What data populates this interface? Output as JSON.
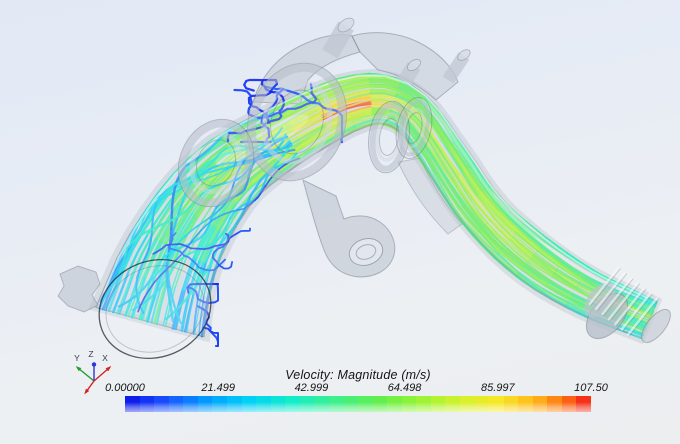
{
  "legend": {
    "title": "Velocity: Magnitude (m/s)",
    "ticks": [
      "0.00000",
      "21.499",
      "42.999",
      "64.498",
      "85.997",
      "107.50"
    ],
    "segments": 32,
    "colormap": [
      [
        0.0,
        "#0a12e8"
      ],
      [
        0.09,
        "#1a53ff"
      ],
      [
        0.18,
        "#00a0ff"
      ],
      [
        0.27,
        "#00d4f5"
      ],
      [
        0.36,
        "#12edc8"
      ],
      [
        0.45,
        "#3cf08c"
      ],
      [
        0.54,
        "#5fee4f"
      ],
      [
        0.63,
        "#97f335"
      ],
      [
        0.72,
        "#d3f22b"
      ],
      [
        0.8,
        "#f6e825"
      ],
      [
        0.88,
        "#ffb81c"
      ],
      [
        0.94,
        "#ff7312"
      ],
      [
        1.0,
        "#f31a1a"
      ]
    ]
  },
  "triad": {
    "axes": [
      {
        "label": "Y",
        "color": "#1f9e2c"
      },
      {
        "label": "Z",
        "color": "#2739d6"
      },
      {
        "label": "X",
        "color": "#d02424"
      }
    ],
    "label_color": "#3a3f48"
  },
  "colors": {
    "background_top": "#e2e9f5",
    "background_bottom": "#eceef0",
    "geometry_fill": "#a8b0bf",
    "geometry_edge": "#6e7886",
    "recirculation_blue": "#2634cd"
  },
  "chart_data": {
    "type": "heatmap",
    "title": "Velocity: Magnitude (m/s)",
    "units": "m/s",
    "scalar_range": [
      0,
      107.5
    ],
    "colorbar_ticks": [
      0.0,
      21.499,
      42.999,
      64.498,
      85.997,
      107.5
    ],
    "colorbar_segments": 32,
    "colormap_stops": [
      "#0a12e8",
      "#1a53ff",
      "#00a0ff",
      "#00d4f5",
      "#12edc8",
      "#3cf08c",
      "#5fee4f",
      "#97f335",
      "#d3f22b",
      "#f6e825",
      "#ffb81c",
      "#ff7312",
      "#f31a1a"
    ],
    "legend_position": "bottom-center",
    "annotations": [
      "Y",
      "Z",
      "X"
    ],
    "content": "Streamlines colored by velocity magnitude through a translucent intake duct: inlet bell at lower-left (green/cyan with blue recirculation), flanged throttle barrel at top (yellow core, dark-blue recirculation swirls), peak red/orange at elbow bend, green/yellow flow descending S-duct to ribbed hose-barb outlet at lower-right"
  }
}
